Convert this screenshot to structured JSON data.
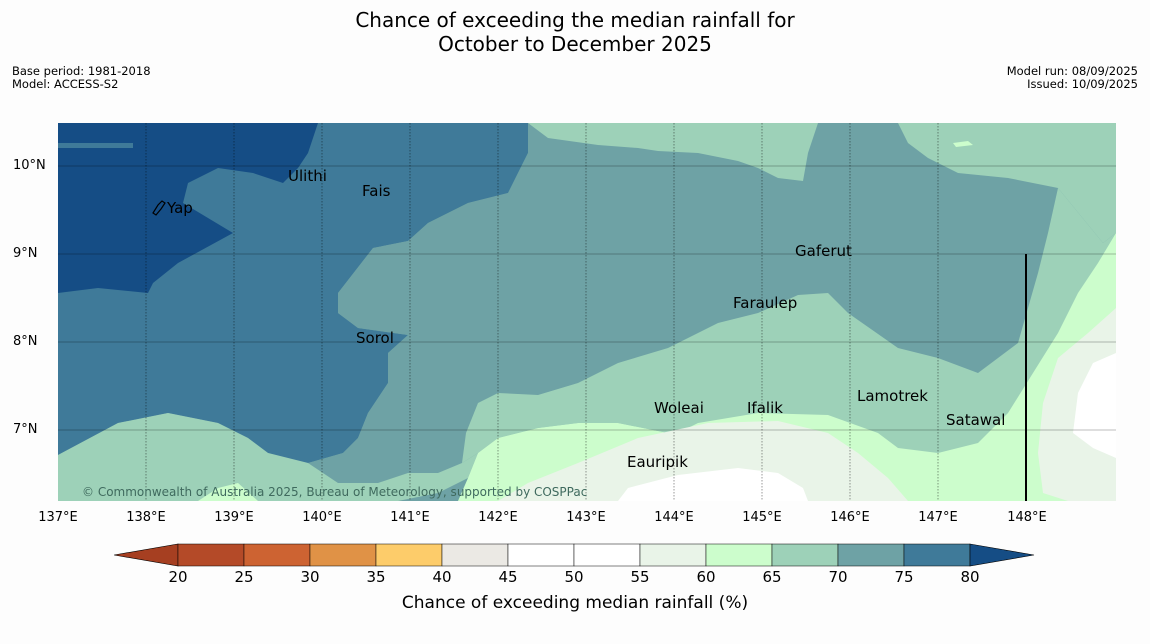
{
  "title": {
    "line1": "Chance of exceeding the median rainfall for",
    "line2": "October to December 2025"
  },
  "meta_left": {
    "base_period": "Base period: 1981-2018",
    "model": "Model: ACCESS-S2"
  },
  "meta_right": {
    "model_run": "Model run: 08/09/2025",
    "issued": "Issued: 10/09/2025"
  },
  "map": {
    "y_ticks": [
      "10°N",
      "9°N",
      "8°N",
      "7°N"
    ],
    "x_ticks": [
      "137°E",
      "138°E",
      "139°E",
      "140°E",
      "141°E",
      "142°E",
      "143°E",
      "144°E",
      "145°E",
      "146°E",
      "147°E",
      "148°E"
    ],
    "places": {
      "yap": "Yap",
      "ulithi": "Ulithi",
      "fais": "Fais",
      "gaferut": "Gaferut",
      "faraulep": "Faraulep",
      "sorol": "Sorol",
      "lamotrek": "Lamotrek",
      "woleai": "Woleai",
      "ifalik": "Ifalik",
      "satawal": "Satawal",
      "eauripik": "Eauripik"
    },
    "copyright": "© Commonwealth of Australia 2025, Bureau of Meteorology, supported by COSPPac"
  },
  "colorbar": {
    "ticks": [
      "20",
      "25",
      "30",
      "35",
      "40",
      "45",
      "50",
      "55",
      "60",
      "65",
      "70",
      "75",
      "80"
    ],
    "label": "Chance of exceeding median rainfall (%)",
    "colors": [
      "#a63f21",
      "#b44a28",
      "#cd6332",
      "#e09246",
      "#fdcc6a",
      "#ebe9e4",
      "#ffffff",
      "#ffffff",
      "#e9f4e8",
      "#ccfdcc",
      "#9dd1b8",
      "#6ea2a5",
      "#3f7a99",
      "#154d85"
    ]
  }
}
